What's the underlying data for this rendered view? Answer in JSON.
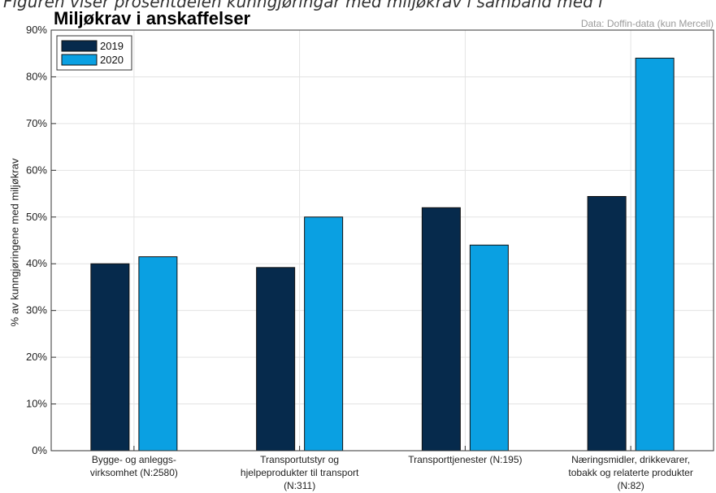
{
  "caption": "Figuren viser prosentdelen kunngjøringar med miljøkrav i samband med i",
  "source_note": "Data: Doffin-data (kun Mercell)",
  "colors": {
    "series_2019": "#062a4c",
    "series_2020": "#0aa0e2"
  },
  "chart_data": {
    "type": "bar",
    "title": "Miljøkrav i anskaffelser",
    "ylabel": "% av kunngjøringene med miljøkrav",
    "xlabel": "",
    "ylim": [
      0,
      90
    ],
    "y_ticks": [
      "0%",
      "10%",
      "20%",
      "30%",
      "40%",
      "50%",
      "60%",
      "70%",
      "80%",
      "90%"
    ],
    "grid": true,
    "legend_position": "top-left",
    "categories": [
      [
        "Bygge- og anleggs-",
        "virksomhet (N:2580)"
      ],
      [
        "Transportutstyr og",
        "hjelpeprodukter til transport",
        "(N:311)"
      ],
      [
        "Transporttjenester (N:195)"
      ],
      [
        "Næringsmidler, drikkevarer,",
        "tobakk og relaterte produkter",
        "(N:82)"
      ]
    ],
    "series": [
      {
        "name": "2019",
        "values": [
          40,
          39.2,
          52,
          54.4
        ]
      },
      {
        "name": "2020",
        "values": [
          41.5,
          50,
          44,
          84
        ]
      }
    ]
  }
}
